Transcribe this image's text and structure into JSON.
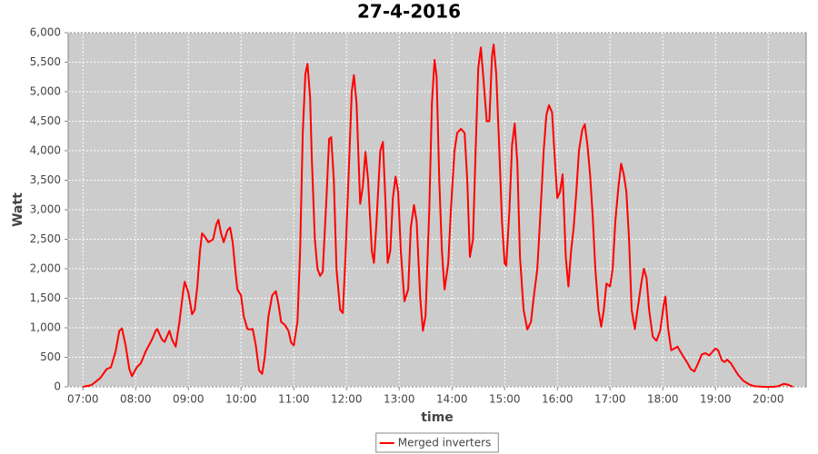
{
  "chart_data": {
    "type": "line",
    "title": "27-4-2016",
    "x_label": "time",
    "y_label": "Watt",
    "x": [
      7.0,
      7.16,
      7.33,
      7.45,
      7.53,
      7.62,
      7.69,
      7.74,
      7.81,
      7.88,
      7.93,
      8.02,
      8.1,
      8.19,
      8.31,
      8.38,
      8.41,
      8.5,
      8.55,
      8.64,
      8.69,
      8.76,
      8.83,
      8.9,
      8.93,
      9.0,
      9.07,
      9.12,
      9.17,
      9.22,
      9.26,
      9.31,
      9.38,
      9.47,
      9.53,
      9.57,
      9.62,
      9.67,
      9.74,
      9.79,
      9.84,
      9.9,
      9.93,
      10.0,
      10.05,
      10.12,
      10.17,
      10.22,
      10.28,
      10.34,
      10.4,
      10.45,
      10.52,
      10.59,
      10.66,
      10.71,
      10.76,
      10.83,
      10.9,
      10.95,
      11.0,
      11.07,
      11.12,
      11.17,
      11.22,
      11.26,
      11.31,
      11.34,
      11.4,
      11.45,
      11.5,
      11.55,
      11.62,
      11.67,
      11.71,
      11.76,
      11.81,
      11.88,
      11.93,
      11.98,
      12.05,
      12.1,
      12.14,
      12.19,
      12.26,
      12.31,
      12.36,
      12.41,
      12.48,
      12.52,
      12.57,
      12.64,
      12.69,
      12.74,
      12.78,
      12.83,
      12.88,
      12.93,
      12.98,
      13.03,
      13.1,
      13.17,
      13.22,
      13.28,
      13.33,
      13.4,
      13.45,
      13.5,
      13.57,
      13.62,
      13.67,
      13.71,
      13.76,
      13.81,
      13.86,
      13.93,
      13.98,
      14.05,
      14.1,
      14.17,
      14.24,
      14.29,
      14.34,
      14.4,
      14.45,
      14.5,
      14.55,
      14.6,
      14.66,
      14.71,
      14.76,
      14.79,
      14.84,
      14.9,
      14.95,
      15.0,
      15.03,
      15.09,
      15.14,
      15.19,
      15.24,
      15.29,
      15.36,
      15.43,
      15.5,
      15.55,
      15.62,
      15.67,
      15.74,
      15.79,
      15.84,
      15.9,
      15.95,
      16.0,
      16.05,
      16.1,
      16.16,
      16.21,
      16.26,
      16.31,
      16.36,
      16.41,
      16.47,
      16.52,
      16.57,
      16.62,
      16.67,
      16.72,
      16.78,
      16.83,
      16.88,
      16.93,
      17.0,
      17.05,
      17.1,
      17.16,
      17.21,
      17.26,
      17.31,
      17.36,
      17.41,
      17.47,
      17.52,
      17.59,
      17.64,
      17.69,
      17.74,
      17.81,
      17.88,
      17.95,
      18.02,
      18.05,
      18.1,
      18.16,
      18.22,
      18.28,
      18.33,
      18.4,
      18.47,
      18.53,
      18.6,
      18.67,
      18.74,
      18.81,
      18.88,
      18.95,
      19.0,
      19.05,
      19.12,
      19.17,
      19.22,
      19.29,
      19.36,
      19.43,
      19.53,
      19.64,
      19.74,
      19.91,
      20.09,
      20.19,
      20.29,
      20.36,
      20.47
    ],
    "series": [
      {
        "name": "Merged inverters",
        "color": "#ff0000",
        "values": [
          0,
          30,
          150,
          300,
          330,
          600,
          950,
          990,
          700,
          300,
          180,
          330,
          400,
          600,
          800,
          950,
          980,
          800,
          760,
          950,
          800,
          680,
          1100,
          1600,
          1780,
          1600,
          1230,
          1300,
          1700,
          2300,
          2600,
          2550,
          2450,
          2500,
          2750,
          2830,
          2600,
          2450,
          2650,
          2700,
          2450,
          1900,
          1650,
          1550,
          1200,
          980,
          970,
          980,
          700,
          280,
          220,
          500,
          1200,
          1550,
          1620,
          1400,
          1100,
          1050,
          950,
          750,
          700,
          1100,
          2300,
          4300,
          5300,
          5470,
          4900,
          3900,
          2500,
          2000,
          1880,
          1950,
          3200,
          4200,
          4230,
          3500,
          2000,
          1300,
          1250,
          2200,
          3800,
          5000,
          5280,
          4800,
          3100,
          3400,
          3980,
          3500,
          2300,
          2100,
          2800,
          4000,
          4150,
          3100,
          2100,
          2300,
          3200,
          3560,
          3300,
          2300,
          1450,
          1650,
          2700,
          3080,
          2800,
          1500,
          950,
          1200,
          3000,
          4800,
          5540,
          5250,
          3500,
          2300,
          1650,
          2100,
          3000,
          4000,
          4300,
          4370,
          4300,
          3500,
          2200,
          2500,
          4000,
          5400,
          5750,
          5200,
          4500,
          4500,
          5600,
          5800,
          5300,
          4000,
          2800,
          2100,
          2050,
          3000,
          4100,
          4460,
          3800,
          2200,
          1300,
          970,
          1100,
          1500,
          2000,
          2800,
          4000,
          4600,
          4770,
          4650,
          3900,
          3200,
          3300,
          3600,
          2200,
          1700,
          2300,
          2700,
          3300,
          4000,
          4350,
          4450,
          4100,
          3600,
          2900,
          2000,
          1300,
          1020,
          1300,
          1750,
          1700,
          2000,
          2800,
          3400,
          3780,
          3600,
          3300,
          2500,
          1300,
          980,
          1300,
          1750,
          2000,
          1850,
          1300,
          850,
          780,
          950,
          1400,
          1530,
          1000,
          620,
          650,
          680,
          600,
          500,
          400,
          300,
          260,
          400,
          550,
          570,
          530,
          600,
          650,
          620,
          450,
          420,
          460,
          400,
          300,
          200,
          100,
          40,
          10,
          0,
          0,
          10,
          50,
          40,
          0
        ]
      }
    ],
    "xlim": [
      6.72,
      20.72
    ],
    "xticks": [
      {
        "value": 7,
        "label": "07:00"
      },
      {
        "value": 8,
        "label": "08:00"
      },
      {
        "value": 9,
        "label": "09:00"
      },
      {
        "value": 10,
        "label": "10:00"
      },
      {
        "value": 11,
        "label": "11:00"
      },
      {
        "value": 12,
        "label": "12:00"
      },
      {
        "value": 13,
        "label": "13:00"
      },
      {
        "value": 14,
        "label": "14:00"
      },
      {
        "value": 15,
        "label": "15:00"
      },
      {
        "value": 16,
        "label": "16:00"
      },
      {
        "value": 17,
        "label": "17:00"
      },
      {
        "value": 18,
        "label": "18:00"
      },
      {
        "value": 19,
        "label": "19:00"
      },
      {
        "value": 20,
        "label": "20:00"
      }
    ],
    "ylim": [
      0,
      6000
    ],
    "yticks": [
      0,
      500,
      {
        "value": 1000,
        "label": "1,000"
      },
      {
        "value": 1500,
        "label": "1,500"
      },
      {
        "value": 2000,
        "label": "2,000"
      },
      {
        "value": 2500,
        "label": "2,500"
      },
      {
        "value": 3000,
        "label": "3,000"
      },
      {
        "value": 3500,
        "label": "3,500"
      },
      {
        "value": 4000,
        "label": "4,000"
      },
      {
        "value": 4500,
        "label": "4,500"
      },
      {
        "value": 5000,
        "label": "5,000"
      },
      {
        "value": 5500,
        "label": "5,500"
      },
      {
        "value": 6000,
        "label": "6,000"
      }
    ],
    "grid": true,
    "legend": "bottom",
    "background": "#cccccc"
  }
}
